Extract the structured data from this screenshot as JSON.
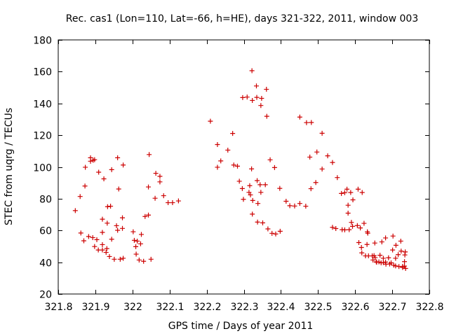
{
  "chart_data": {
    "type": "scatter",
    "title": "Rec. cas1 (Lon=110, Lat=-66, h=HE), days 321-322, 2011, window 003",
    "xlabel": "GPS time / Days of year 2011",
    "ylabel": "STEC from uqrg / TECUs",
    "xlim": [
      321.8,
      322.8
    ],
    "ylim": [
      20,
      180
    ],
    "xticks": [
      321.8,
      321.9,
      322.0,
      322.1,
      322.2,
      322.3,
      322.4,
      322.5,
      322.6,
      322.7,
      322.8
    ],
    "xtick_labels": [
      "321.8",
      "321.9",
      "322",
      "322.1",
      "322.2",
      "322.3",
      "322.4",
      "322.5",
      "322.6",
      "322.7",
      "322.8"
    ],
    "yticks": [
      20,
      40,
      60,
      80,
      100,
      120,
      140,
      160,
      180
    ],
    "ytick_labels": [
      "20",
      "40",
      "60",
      "80",
      "100",
      "120",
      "140",
      "160",
      "180"
    ],
    "marker": "+",
    "color": "#cc0000",
    "grid": false,
    "points": [
      [
        321.846,
        72.5
      ],
      [
        321.859,
        81.4
      ],
      [
        321.861,
        58.4
      ],
      [
        321.869,
        53.5
      ],
      [
        321.872,
        88.0
      ],
      [
        321.873,
        99.8
      ],
      [
        321.882,
        56.2
      ],
      [
        321.887,
        105.8
      ],
      [
        321.887,
        103.6
      ],
      [
        321.894,
        104.2
      ],
      [
        321.898,
        104.6
      ],
      [
        321.893,
        55.5
      ],
      [
        321.898,
        49.9
      ],
      [
        321.904,
        54.2
      ],
      [
        321.908,
        47.7
      ],
      [
        321.909,
        96.7
      ],
      [
        321.919,
        58.8
      ],
      [
        321.919,
        67.1
      ],
      [
        321.919,
        51.1
      ],
      [
        321.919,
        47.7
      ],
      [
        321.923,
        92.5
      ],
      [
        321.929,
        46.2
      ],
      [
        321.931,
        48.6
      ],
      [
        321.933,
        75.0
      ],
      [
        321.932,
        64.6
      ],
      [
        321.938,
        43.6
      ],
      [
        321.941,
        75.3
      ],
      [
        321.944,
        98.3
      ],
      [
        321.944,
        54.5
      ],
      [
        321.951,
        41.9
      ],
      [
        321.957,
        63.0
      ],
      [
        321.96,
        105.8
      ],
      [
        321.96,
        60.1
      ],
      [
        321.963,
        86.1
      ],
      [
        321.967,
        41.9
      ],
      [
        321.973,
        68.0
      ],
      [
        321.975,
        101.2
      ],
      [
        321.973,
        61.3
      ],
      [
        321.975,
        42.5
      ],
      [
        322.002,
        59.2
      ],
      [
        322.005,
        53.8
      ],
      [
        322.009,
        49.8
      ],
      [
        322.01,
        45.1
      ],
      [
        322.013,
        53.3
      ],
      [
        322.018,
        41.4
      ],
      [
        322.022,
        51.6
      ],
      [
        322.024,
        57.5
      ],
      [
        322.03,
        40.6
      ],
      [
        322.034,
        68.8
      ],
      [
        322.043,
        69.7
      ],
      [
        322.043,
        87.4
      ],
      [
        322.045,
        107.8
      ],
      [
        322.05,
        41.9
      ],
      [
        322.061,
        80.3
      ],
      [
        322.063,
        96.0
      ],
      [
        322.074,
        94.1
      ],
      [
        322.074,
        90.6
      ],
      [
        322.084,
        81.9
      ],
      [
        322.096,
        77.5
      ],
      [
        322.108,
        77.5
      ],
      [
        322.124,
        78.6
      ],
      [
        322.21,
        128.8
      ],
      [
        322.229,
        99.8
      ],
      [
        322.229,
        114.1
      ],
      [
        322.238,
        103.8
      ],
      [
        322.257,
        110.6
      ],
      [
        322.27,
        121.1
      ],
      [
        322.273,
        101.2
      ],
      [
        322.283,
        100.5
      ],
      [
        322.288,
        91.0
      ],
      [
        322.299,
        79.6
      ],
      [
        322.296,
        86.4
      ],
      [
        322.297,
        143.7
      ],
      [
        322.309,
        144.0
      ],
      [
        322.314,
        84.0
      ],
      [
        322.316,
        88.2
      ],
      [
        322.318,
        82.4
      ],
      [
        322.322,
        160.6
      ],
      [
        322.323,
        141.9
      ],
      [
        322.321,
        98.8
      ],
      [
        322.324,
        78.9
      ],
      [
        322.323,
        70.3
      ],
      [
        322.334,
        151.0
      ],
      [
        322.335,
        143.8
      ],
      [
        322.336,
        91.4
      ],
      [
        322.338,
        77.0
      ],
      [
        322.337,
        65.3
      ],
      [
        322.344,
        88.8
      ],
      [
        322.346,
        84.0
      ],
      [
        322.346,
        138.7
      ],
      [
        322.348,
        143.2
      ],
      [
        322.351,
        64.8
      ],
      [
        322.358,
        88.8
      ],
      [
        322.362,
        131.9
      ],
      [
        322.361,
        148.9
      ],
      [
        322.365,
        61.0
      ],
      [
        322.371,
        104.5
      ],
      [
        322.376,
        58.2
      ],
      [
        322.383,
        99.6
      ],
      [
        322.386,
        57.8
      ],
      [
        322.397,
        86.5
      ],
      [
        322.398,
        59.5
      ],
      [
        322.414,
        78.4
      ],
      [
        322.424,
        75.6
      ],
      [
        322.437,
        75.4
      ],
      [
        322.451,
        131.4
      ],
      [
        322.451,
        77.0
      ],
      [
        322.467,
        75.3
      ],
      [
        322.469,
        127.9
      ],
      [
        322.478,
        106.2
      ],
      [
        322.481,
        86.3
      ],
      [
        322.482,
        128.0
      ],
      [
        322.494,
        90.2
      ],
      [
        322.497,
        109.4
      ],
      [
        322.511,
        98.7
      ],
      [
        322.511,
        121.2
      ],
      [
        322.526,
        107.0
      ],
      [
        322.539,
        102.8
      ],
      [
        322.539,
        62.0
      ],
      [
        322.548,
        61.2
      ],
      [
        322.552,
        93.3
      ],
      [
        322.563,
        83.3
      ],
      [
        322.565,
        60.5
      ],
      [
        322.572,
        83.8
      ],
      [
        322.572,
        60.4
      ],
      [
        322.578,
        86.0
      ],
      [
        322.581,
        75.9
      ],
      [
        322.581,
        70.9
      ],
      [
        322.584,
        60.5
      ],
      [
        322.588,
        83.9
      ],
      [
        322.59,
        65.1
      ],
      [
        322.594,
        79.3
      ],
      [
        322.593,
        62.6
      ],
      [
        322.606,
        63.1
      ],
      [
        322.608,
        86.0
      ],
      [
        322.61,
        52.4
      ],
      [
        322.614,
        61.6
      ],
      [
        322.617,
        49.3
      ],
      [
        322.618,
        45.9
      ],
      [
        322.619,
        83.9
      ],
      [
        322.624,
        64.5
      ],
      [
        322.628,
        44.0
      ],
      [
        322.632,
        51.2
      ],
      [
        322.633,
        59.2
      ],
      [
        322.634,
        58.3
      ],
      [
        322.636,
        44.0
      ],
      [
        322.646,
        44.0
      ],
      [
        322.648,
        41.4
      ],
      [
        322.651,
        44.2
      ],
      [
        322.653,
        52.1
      ],
      [
        322.654,
        42.9
      ],
      [
        322.657,
        40.3
      ],
      [
        322.658,
        40.0
      ],
      [
        322.664,
        40.2
      ],
      [
        322.667,
        44.4
      ],
      [
        322.67,
        39.6
      ],
      [
        322.672,
        52.8
      ],
      [
        322.676,
        42.5
      ],
      [
        322.676,
        39.8
      ],
      [
        322.682,
        55.3
      ],
      [
        322.682,
        40.1
      ],
      [
        322.683,
        38.8
      ],
      [
        322.69,
        42.8
      ],
      [
        322.693,
        38.9
      ],
      [
        322.697,
        39.6
      ],
      [
        322.701,
        47.7
      ],
      [
        322.702,
        56.5
      ],
      [
        322.704,
        38.1
      ],
      [
        322.709,
        42.5
      ],
      [
        322.709,
        37.7
      ],
      [
        322.71,
        50.7
      ],
      [
        322.716,
        44.8
      ],
      [
        322.718,
        37.3
      ],
      [
        322.723,
        53.3
      ],
      [
        322.724,
        47.0
      ],
      [
        322.728,
        36.7
      ],
      [
        322.728,
        37.4
      ],
      [
        322.733,
        40.4
      ],
      [
        322.733,
        37.6
      ],
      [
        322.734,
        44.6
      ],
      [
        322.735,
        46.5
      ],
      [
        322.736,
        36.1
      ]
    ]
  }
}
